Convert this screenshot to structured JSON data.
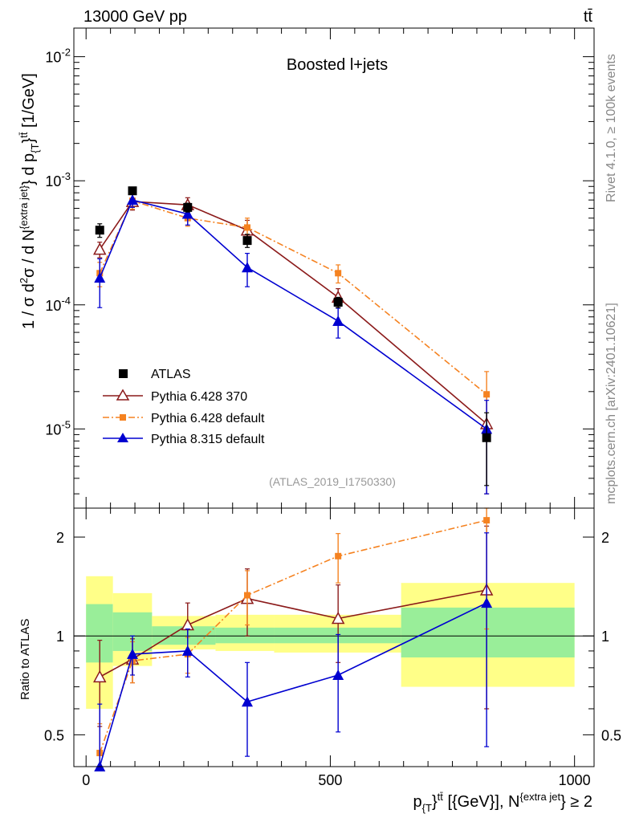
{
  "header": {
    "left_label": "13000 GeV pp",
    "right_label": "tt̄"
  },
  "side_text": {
    "rivet": "Rivet 4.1.0, ≥ 100k events",
    "mcplots": "mcplots.cern.ch [arXiv:2401.10621]"
  },
  "chart_data": [
    {
      "type": "line",
      "title": "Boosted l+jets",
      "reference": "(ATLAS_2019_I1750330)",
      "xlabel": "p_{T}^{tt̄} [{GeV}], N^{extra jet} ≥ 2",
      "ylabel": "1 / σ d²σ / d N^{extra jet} d p_{T}^{tt̄} [1/GeV]",
      "yscale": "log",
      "xlim": [
        -25,
        1040
      ],
      "ylim": [
        2.3e-06,
        0.017
      ],
      "ytick_labels": [
        "10^-5",
        "10^-4",
        "10^-3",
        "10^-2"
      ],
      "legend_position": "center-left",
      "bins": [
        [
          0,
          55
        ],
        [
          55,
          135
        ],
        [
          135,
          265
        ],
        [
          265,
          385
        ],
        [
          385,
          645
        ],
        [
          645,
          1000
        ]
      ],
      "x": [
        28,
        95,
        208,
        330,
        516,
        820
      ],
      "series": [
        {
          "name": "ATLAS",
          "marker": "square",
          "color": "#000000",
          "values": [
            0.0004,
            0.00083,
            0.00061,
            0.00033,
            0.000105,
            8.5e-06
          ],
          "errors": [
            5e-05,
            5e-05,
            5e-05,
            4e-05,
            1e-05,
            5e-06
          ]
        },
        {
          "name": "Pythia 6.428 370",
          "marker": "open-triangle",
          "color": "#8b1a1a",
          "line": "solid",
          "values": [
            0.00028,
            0.00068,
            0.00064,
            0.0004,
            0.000115,
            1.1e-05
          ],
          "errors": [
            4e-05,
            0.0001,
            9e-05,
            8e-05,
            2e-05,
            8e-06
          ]
        },
        {
          "name": "Pythia 6.428 default",
          "marker": "square",
          "color": "#f58220",
          "line": "dashdot",
          "values": [
            0.00018,
            0.00069,
            0.0005,
            0.00042,
            0.00018,
            1.9e-05
          ],
          "errors": [
            4e-05,
            0.0001,
            7e-05,
            8e-05,
            3e-05,
            1e-05
          ]
        },
        {
          "name": "Pythia 8.315 default",
          "marker": "triangle",
          "color": "#0000d0",
          "line": "solid",
          "values": [
            0.000165,
            0.0007,
            0.00054,
            0.0002,
            7.4e-05,
            1e-05
          ],
          "errors": [
            7e-05,
            9e-05,
            0.0001,
            6e-05,
            2e-05,
            7e-06
          ]
        }
      ]
    },
    {
      "type": "line",
      "ylabel": "Ratio to ATLAS",
      "yscale": "log",
      "xlim": [
        -25,
        1040
      ],
      "ylim": [
        0.4,
        2.45
      ],
      "ytick_labels": [
        "0.5",
        "1",
        "2"
      ],
      "xtick_labels": [
        "0",
        "500",
        "1000"
      ],
      "reference_line": 1,
      "bands": {
        "inner": [
          [
            0.83,
            1.25
          ],
          [
            0.9,
            1.18
          ],
          [
            0.94,
            1.07
          ],
          [
            0.95,
            1.06
          ],
          [
            0.95,
            1.06
          ],
          [
            0.86,
            1.22
          ]
        ],
        "outer": [
          [
            0.6,
            1.52
          ],
          [
            0.81,
            1.35
          ],
          [
            0.91,
            1.15
          ],
          [
            0.9,
            1.16
          ],
          [
            0.89,
            1.16
          ],
          [
            0.7,
            1.45
          ]
        ]
      },
      "series": [
        {
          "name": "Pythia 6.428 370",
          "color": "#8b1a1a",
          "values": [
            0.75,
            0.85,
            1.08,
            1.3,
            1.13,
            1.38
          ],
          "errors": [
            0.22,
            0.13,
            0.18,
            0.3,
            0.3,
            0.78
          ]
        },
        {
          "name": "Pythia 6.428 default",
          "color": "#f58220",
          "values": [
            0.44,
            0.84,
            0.88,
            1.33,
            1.75,
            2.25
          ],
          "errors": [
            0.1,
            0.12,
            0.11,
            0.25,
            0.3,
            1.2
          ]
        },
        {
          "name": "Pythia 8.315 default",
          "color": "#0000d0",
          "values": [
            0.37,
            0.88,
            0.9,
            0.63,
            0.76,
            1.26
          ],
          "errors": [
            0.25,
            0.12,
            0.15,
            0.2,
            0.25,
            0.8
          ]
        }
      ]
    }
  ]
}
